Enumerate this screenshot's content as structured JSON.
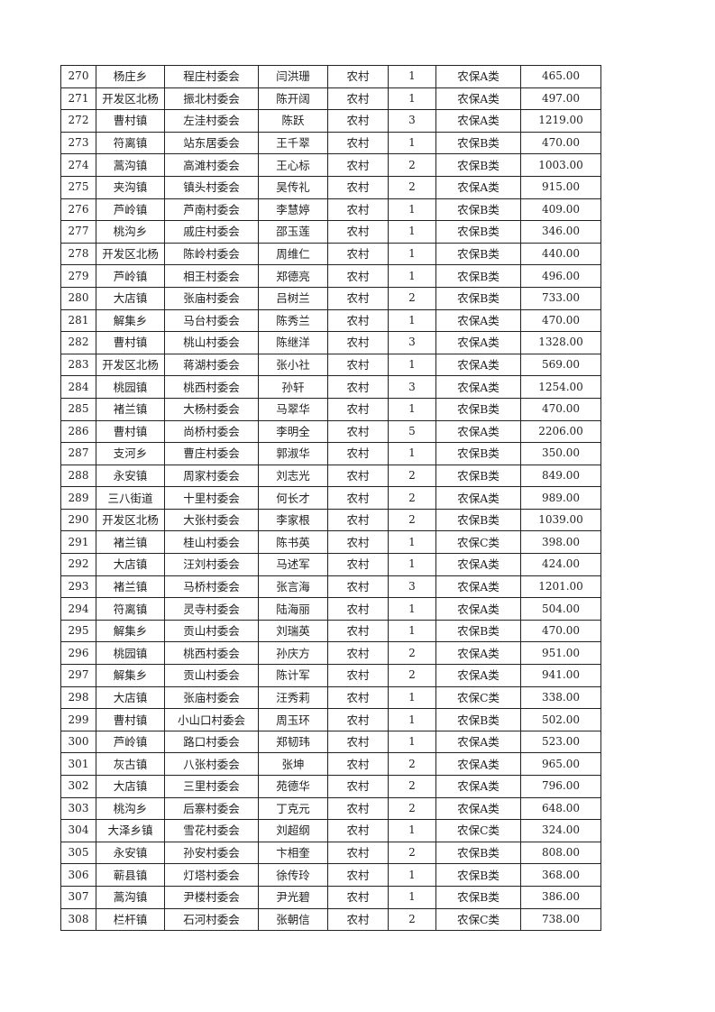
{
  "rows": [
    [
      "270",
      "杨庄乡",
      "程庄村委会",
      "闫洪珊",
      "农村",
      "1",
      "农保A类",
      "465.00"
    ],
    [
      "271",
      "开发区北杨",
      "振北村委会",
      "陈开阔",
      "农村",
      "1",
      "农保A类",
      "497.00"
    ],
    [
      "272",
      "曹村镇",
      "左洼村委会",
      "陈跃",
      "农村",
      "3",
      "农保A类",
      "1219.00"
    ],
    [
      "273",
      "符离镇",
      "站东居委会",
      "王千翠",
      "农村",
      "1",
      "农保B类",
      "470.00"
    ],
    [
      "274",
      "蒿沟镇",
      "高滩村委会",
      "王心标",
      "农村",
      "2",
      "农保B类",
      "1003.00"
    ],
    [
      "275",
      "夹沟镇",
      "镇头村委会",
      "吴传礼",
      "农村",
      "2",
      "农保A类",
      "915.00"
    ],
    [
      "276",
      "芦岭镇",
      "芦南村委会",
      "李慧婷",
      "农村",
      "1",
      "农保B类",
      "409.00"
    ],
    [
      "277",
      "桃沟乡",
      "戚庄村委会",
      "邵玉莲",
      "农村",
      "1",
      "农保B类",
      "346.00"
    ],
    [
      "278",
      "开发区北杨",
      "陈岭村委会",
      "周维仁",
      "农村",
      "1",
      "农保B类",
      "440.00"
    ],
    [
      "279",
      "芦岭镇",
      "相王村委会",
      "郑德亮",
      "农村",
      "1",
      "农保B类",
      "496.00"
    ],
    [
      "280",
      "大店镇",
      "张庙村委会",
      "吕树兰",
      "农村",
      "2",
      "农保B类",
      "733.00"
    ],
    [
      "281",
      "解集乡",
      "马台村委会",
      "陈秀兰",
      "农村",
      "1",
      "农保A类",
      "470.00"
    ],
    [
      "282",
      "曹村镇",
      "桃山村委会",
      "陈继洋",
      "农村",
      "3",
      "农保A类",
      "1328.00"
    ],
    [
      "283",
      "开发区北杨",
      "蒋湖村委会",
      "张小社",
      "农村",
      "1",
      "农保A类",
      "569.00"
    ],
    [
      "284",
      "桃园镇",
      "桃西村委会",
      "孙轩",
      "农村",
      "3",
      "农保A类",
      "1254.00"
    ],
    [
      "285",
      "褚兰镇",
      "大杨村委会",
      "马翠华",
      "农村",
      "1",
      "农保B类",
      "470.00"
    ],
    [
      "286",
      "曹村镇",
      "尚桥村委会",
      "李明全",
      "农村",
      "5",
      "农保A类",
      "2206.00"
    ],
    [
      "287",
      "支河乡",
      "曹庄村委会",
      "郭淑华",
      "农村",
      "1",
      "农保B类",
      "350.00"
    ],
    [
      "288",
      "永安镇",
      "周家村委会",
      "刘志光",
      "农村",
      "2",
      "农保B类",
      "849.00"
    ],
    [
      "289",
      "三八街道",
      "十里村委会",
      "何长才",
      "农村",
      "2",
      "农保A类",
      "989.00"
    ],
    [
      "290",
      "开发区北杨",
      "大张村委会",
      "李家根",
      "农村",
      "2",
      "农保B类",
      "1039.00"
    ],
    [
      "291",
      "褚兰镇",
      "桂山村委会",
      "陈书英",
      "农村",
      "1",
      "农保C类",
      "398.00"
    ],
    [
      "292",
      "大店镇",
      "汪刘村委会",
      "马述军",
      "农村",
      "1",
      "农保A类",
      "424.00"
    ],
    [
      "293",
      "褚兰镇",
      "马桥村委会",
      "张言海",
      "农村",
      "3",
      "农保A类",
      "1201.00"
    ],
    [
      "294",
      "符离镇",
      "灵寺村委会",
      "陆海丽",
      "农村",
      "1",
      "农保A类",
      "504.00"
    ],
    [
      "295",
      "解集乡",
      "贡山村委会",
      "刘瑞英",
      "农村",
      "1",
      "农保B类",
      "470.00"
    ],
    [
      "296",
      "桃园镇",
      "桃西村委会",
      "孙庆方",
      "农村",
      "2",
      "农保A类",
      "951.00"
    ],
    [
      "297",
      "解集乡",
      "贡山村委会",
      "陈计军",
      "农村",
      "2",
      "农保A类",
      "941.00"
    ],
    [
      "298",
      "大店镇",
      "张庙村委会",
      "汪秀莉",
      "农村",
      "1",
      "农保C类",
      "338.00"
    ],
    [
      "299",
      "曹村镇",
      "小山口村委会",
      "周玉环",
      "农村",
      "1",
      "农保B类",
      "502.00"
    ],
    [
      "300",
      "芦岭镇",
      "路口村委会",
      "郑韧玮",
      "农村",
      "1",
      "农保A类",
      "523.00"
    ],
    [
      "301",
      "灰古镇",
      "八张村委会",
      "张坤",
      "农村",
      "2",
      "农保A类",
      "965.00"
    ],
    [
      "302",
      "大店镇",
      "三里村委会",
      "苑德华",
      "农村",
      "2",
      "农保A类",
      "796.00"
    ],
    [
      "303",
      "桃沟乡",
      "后寨村委会",
      "丁克元",
      "农村",
      "2",
      "农保A类",
      "648.00"
    ],
    [
      "304",
      "大泽乡镇",
      "雪花村委会",
      "刘超纲",
      "农村",
      "1",
      "农保C类",
      "324.00"
    ],
    [
      "305",
      "永安镇",
      "孙安村委会",
      "卞相奎",
      "农村",
      "2",
      "农保B类",
      "808.00"
    ],
    [
      "306",
      "蕲县镇",
      "灯塔村委会",
      "徐传玲",
      "农村",
      "1",
      "农保B类",
      "368.00"
    ],
    [
      "307",
      "蒿沟镇",
      "尹楼村委会",
      "尹光碧",
      "农村",
      "1",
      "农保B类",
      "386.00"
    ],
    [
      "308",
      "栏杆镇",
      "石河村委会",
      "张朝信",
      "农村",
      "2",
      "农保C类",
      "738.00"
    ]
  ]
}
